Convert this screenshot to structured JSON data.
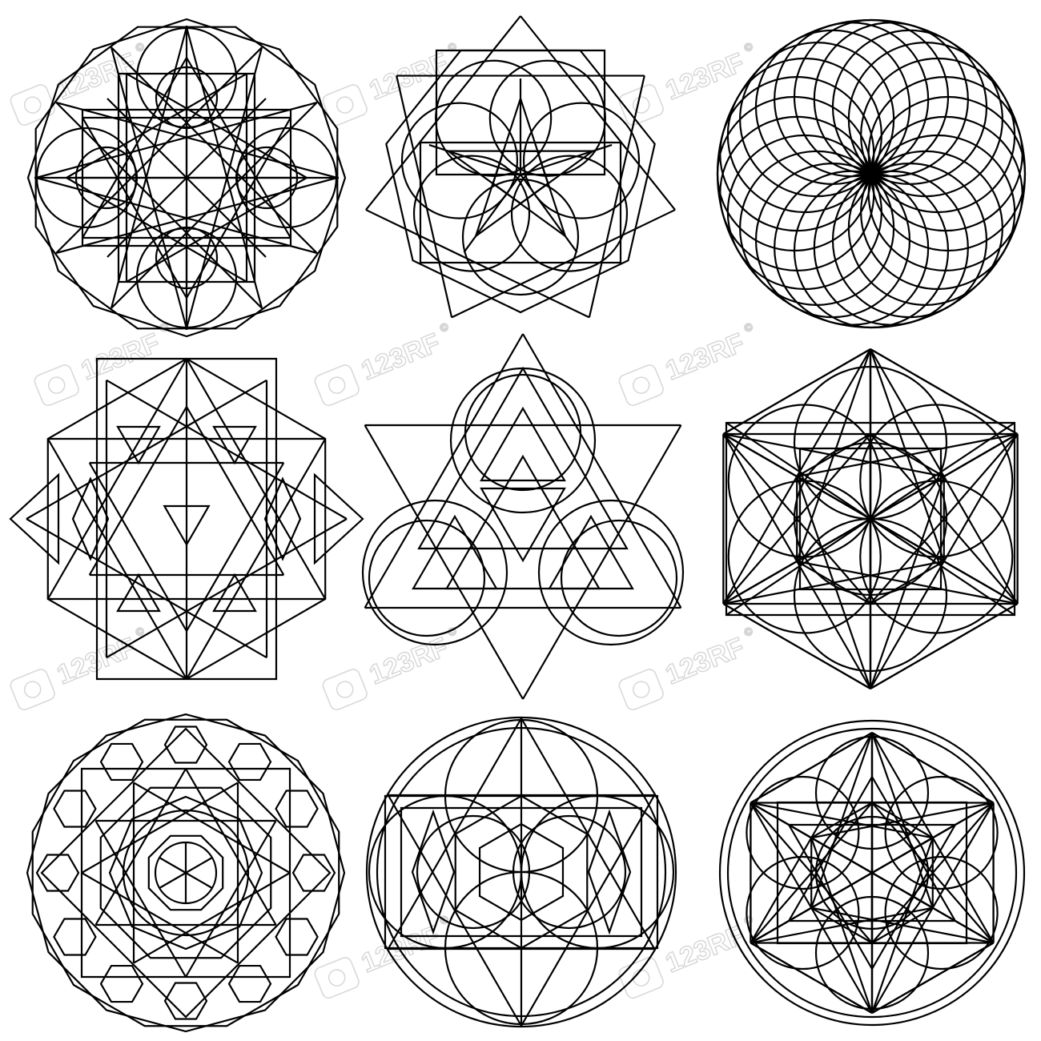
{
  "watermark": {
    "brand": "123RF",
    "copyright": "©"
  },
  "colors": {
    "stroke": "#000000",
    "background": "#ffffff",
    "watermark": "#d6d6d6"
  },
  "symbols": [
    {
      "name": "decagon-star-mandala"
    },
    {
      "name": "heptagram-flower-mandala"
    },
    {
      "name": "torus-circles"
    },
    {
      "name": "hexagram-lattice"
    },
    {
      "name": "triangle-circles-trinity"
    },
    {
      "name": "metatron-cube-circles"
    },
    {
      "name": "hexagon-rings-mandala"
    },
    {
      "name": "circled-cube-star"
    },
    {
      "name": "circled-metatron-cube"
    }
  ]
}
